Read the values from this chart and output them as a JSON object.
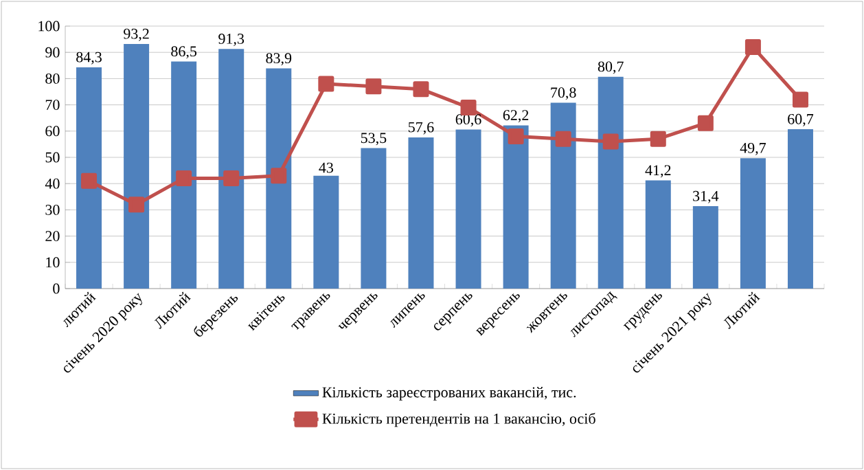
{
  "chart_data": {
    "type": "bar",
    "categories": [
      "лютий",
      "січень 2020 року",
      "Лютий",
      "березень",
      "квітень",
      "травень",
      "червень",
      "липень",
      "серпень",
      "вересень",
      "жовтень",
      "листопад",
      "грудень",
      "січень 2021 року",
      "Лютий",
      null
    ],
    "series": [
      {
        "name": "Кількість зареєстрованих вакансій, тис.",
        "color": "#4f81bd",
        "values": [
          84.3,
          93.2,
          86.5,
          91.3,
          83.9,
          43,
          53.5,
          57.6,
          60.6,
          62.2,
          70.8,
          80.7,
          41.2,
          31.4,
          49.7,
          60.7
        ],
        "value_labels": [
          "84,3",
          "93,2",
          "86,5",
          "91,3",
          "83,9",
          "43",
          "53,5",
          "57,6",
          "60,6",
          "62,2",
          "70,8",
          "80,7",
          "41,2",
          "31,4",
          "49,7",
          "60,7"
        ]
      },
      {
        "name": "Кількість претендентів на 1 вакансію, осіб",
        "type": "line",
        "color": "#c0504d",
        "marker": "square",
        "values": [
          41,
          32,
          42,
          42,
          43,
          78,
          77,
          76,
          69,
          58,
          57,
          56,
          57,
          63,
          92,
          72
        ]
      }
    ],
    "ylim": [
      0,
      100
    ],
    "yticks": [
      0,
      10,
      20,
      30,
      40,
      50,
      60,
      70,
      80,
      90,
      100
    ],
    "grid": "y",
    "legend": "bottom"
  }
}
